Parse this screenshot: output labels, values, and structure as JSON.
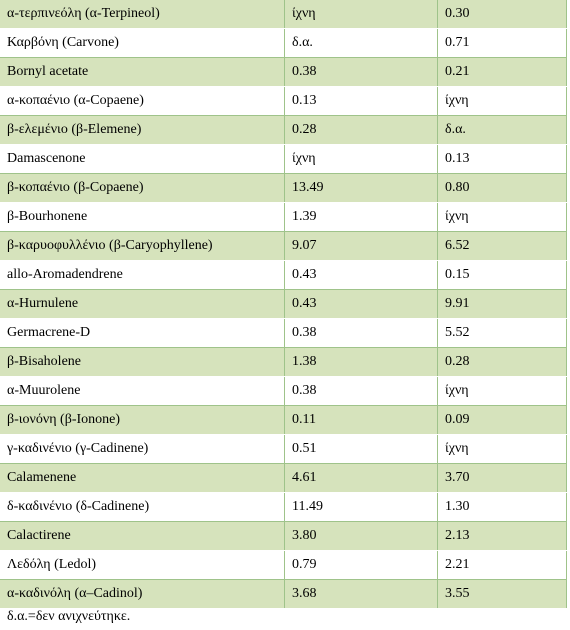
{
  "table": {
    "rows": [
      {
        "compound": "α-τερπινεόλη (α-Terpineol)",
        "col2": "ίχνη",
        "col3": "0.30"
      },
      {
        "compound": "Καρβόνη (Carvone)",
        "col2": "δ.α.",
        "col3": "0.71"
      },
      {
        "compound": "Bornyl acetate",
        "col2": "0.38",
        "col3": "0.21"
      },
      {
        "compound": "α-κοπαένιο (α-Copaene)",
        "col2": "0.13",
        "col3": "ίχνη"
      },
      {
        "compound": "β-ελεμένιο (β-Elemene)",
        "col2": "0.28",
        "col3": "δ.α."
      },
      {
        "compound": "Damascenone",
        "col2": "ίχνη",
        "col3": "0.13"
      },
      {
        "compound": "β-κοπαένιο (β-Copaene)",
        "col2": "13.49",
        "col3": "0.80"
      },
      {
        "compound": "β-Bourhonene",
        "col2": "1.39",
        "col3": "ίχνη"
      },
      {
        "compound": "β-καρυοφυλλένιο (β-Caryophyllene)",
        "col2": "9.07",
        "col3": "6.52"
      },
      {
        "compound": "allo-Aromadendrene",
        "col2": "0.43",
        "col3": "0.15"
      },
      {
        "compound": "α-Hurnulene",
        "col2": "0.43",
        "col3": "9.91"
      },
      {
        "compound": "Germacrene-D",
        "col2": "0.38",
        "col3": "5.52"
      },
      {
        "compound": "β-Bisaholene",
        "col2": "1.38",
        "col3": "0.28"
      },
      {
        "compound": "α-Muurolene",
        "col2": "0.38",
        "col3": "ίχνη"
      },
      {
        "compound": "β-ιονόνη (β-Ionone)",
        "col2": "0.11",
        "col3": "0.09"
      },
      {
        "compound": "γ-καδινένιο (γ-Cadinene)",
        "col2": "0.51",
        "col3": "ίχνη"
      },
      {
        "compound": "Calamenene",
        "col2": "4.61",
        "col3": "3.70"
      },
      {
        "compound": "δ-καδινένιο (δ-Cadinene)",
        "col2": "11.49",
        "col3": "1.30"
      },
      {
        "compound": "Calactirene",
        "col2": "3.80",
        "col3": "2.13"
      },
      {
        "compound": "Λεδόλη (Ledol)",
        "col2": "0.79",
        "col3": "2.21"
      },
      {
        "compound": "α-καδινόλη (α–Cadinol)",
        "col2": "3.68",
        "col3": "3.55"
      }
    ]
  },
  "footnote": "δ.α.=δεν ανιχνεύτηκε.",
  "colors": {
    "row_shade": "#d6e3bc",
    "border": "#9fc38a"
  }
}
